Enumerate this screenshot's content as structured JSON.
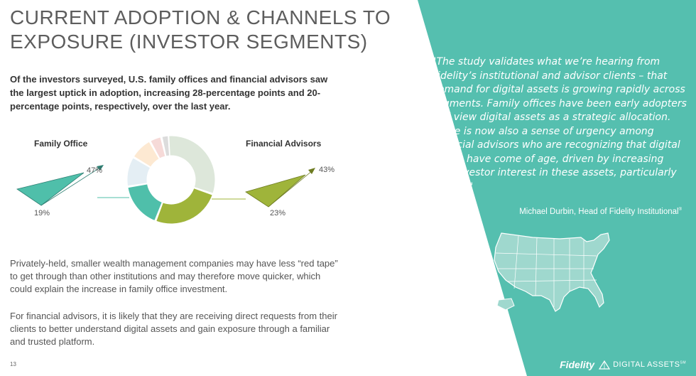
{
  "title": "CURRENT ADOPTION & CHANNELS TO EXPOSURE (INVESTOR SEGMENTS)",
  "intro": "Of the investors surveyed, U.S. family offices and financial advisors saw the largest uptick in adoption, increasing 28-percentage points and 20-percentage points, respectively, over the last year.",
  "segments": {
    "family_office": {
      "label": "Family Office",
      "prior_pct": "19%",
      "current_pct": "47%"
    },
    "financial_advisors": {
      "label": "Financial Advisors",
      "prior_pct": "23%",
      "current_pct": "43%"
    }
  },
  "donut": {
    "segment_colors": [
      "#dde7da",
      "#9fb43a",
      "#4fbfaa",
      "#e4eef4",
      "#fde9d2",
      "#f6dad8",
      "#dcdcdc"
    ]
  },
  "paragraphs": [
    "Privately-held, smaller wealth management companies may have less “red tape” to get through than other institutions and may therefore move quicker, which could explain the increase in family office investment.",
    "For financial advisors, it is likely that they are receiving direct requests from their clients to better understand digital assets and gain exposure through a familiar and trusted platform."
  ],
  "page_number": "13",
  "quote": "\"The study validates what we’re hearing from Fidelity’s institutional and advisor clients – that demand for digital assets is growing rapidly across segments. Family offices have been early adopters and view digital assets as a strategic allocation. There is now also a sense of urgency among financial advisors who are recognizing that digital assets have come of age, driven by increasing end-investor interest in these assets, particularly bitcoin.\"",
  "attribution": "Michael Durbin, Head of Fidelity Institutional",
  "attribution_mark": "®",
  "footer": {
    "brand": "Fidelity",
    "tagline": "DIGITAL ASSETS",
    "tagline_mark": "SM"
  },
  "colors": {
    "teal": "#55bfaf",
    "olive": "#9fb43a",
    "title_gray": "#5d5d5d"
  },
  "icons": [
    "us-map-icon",
    "fidelity-pyramid-icon"
  ]
}
